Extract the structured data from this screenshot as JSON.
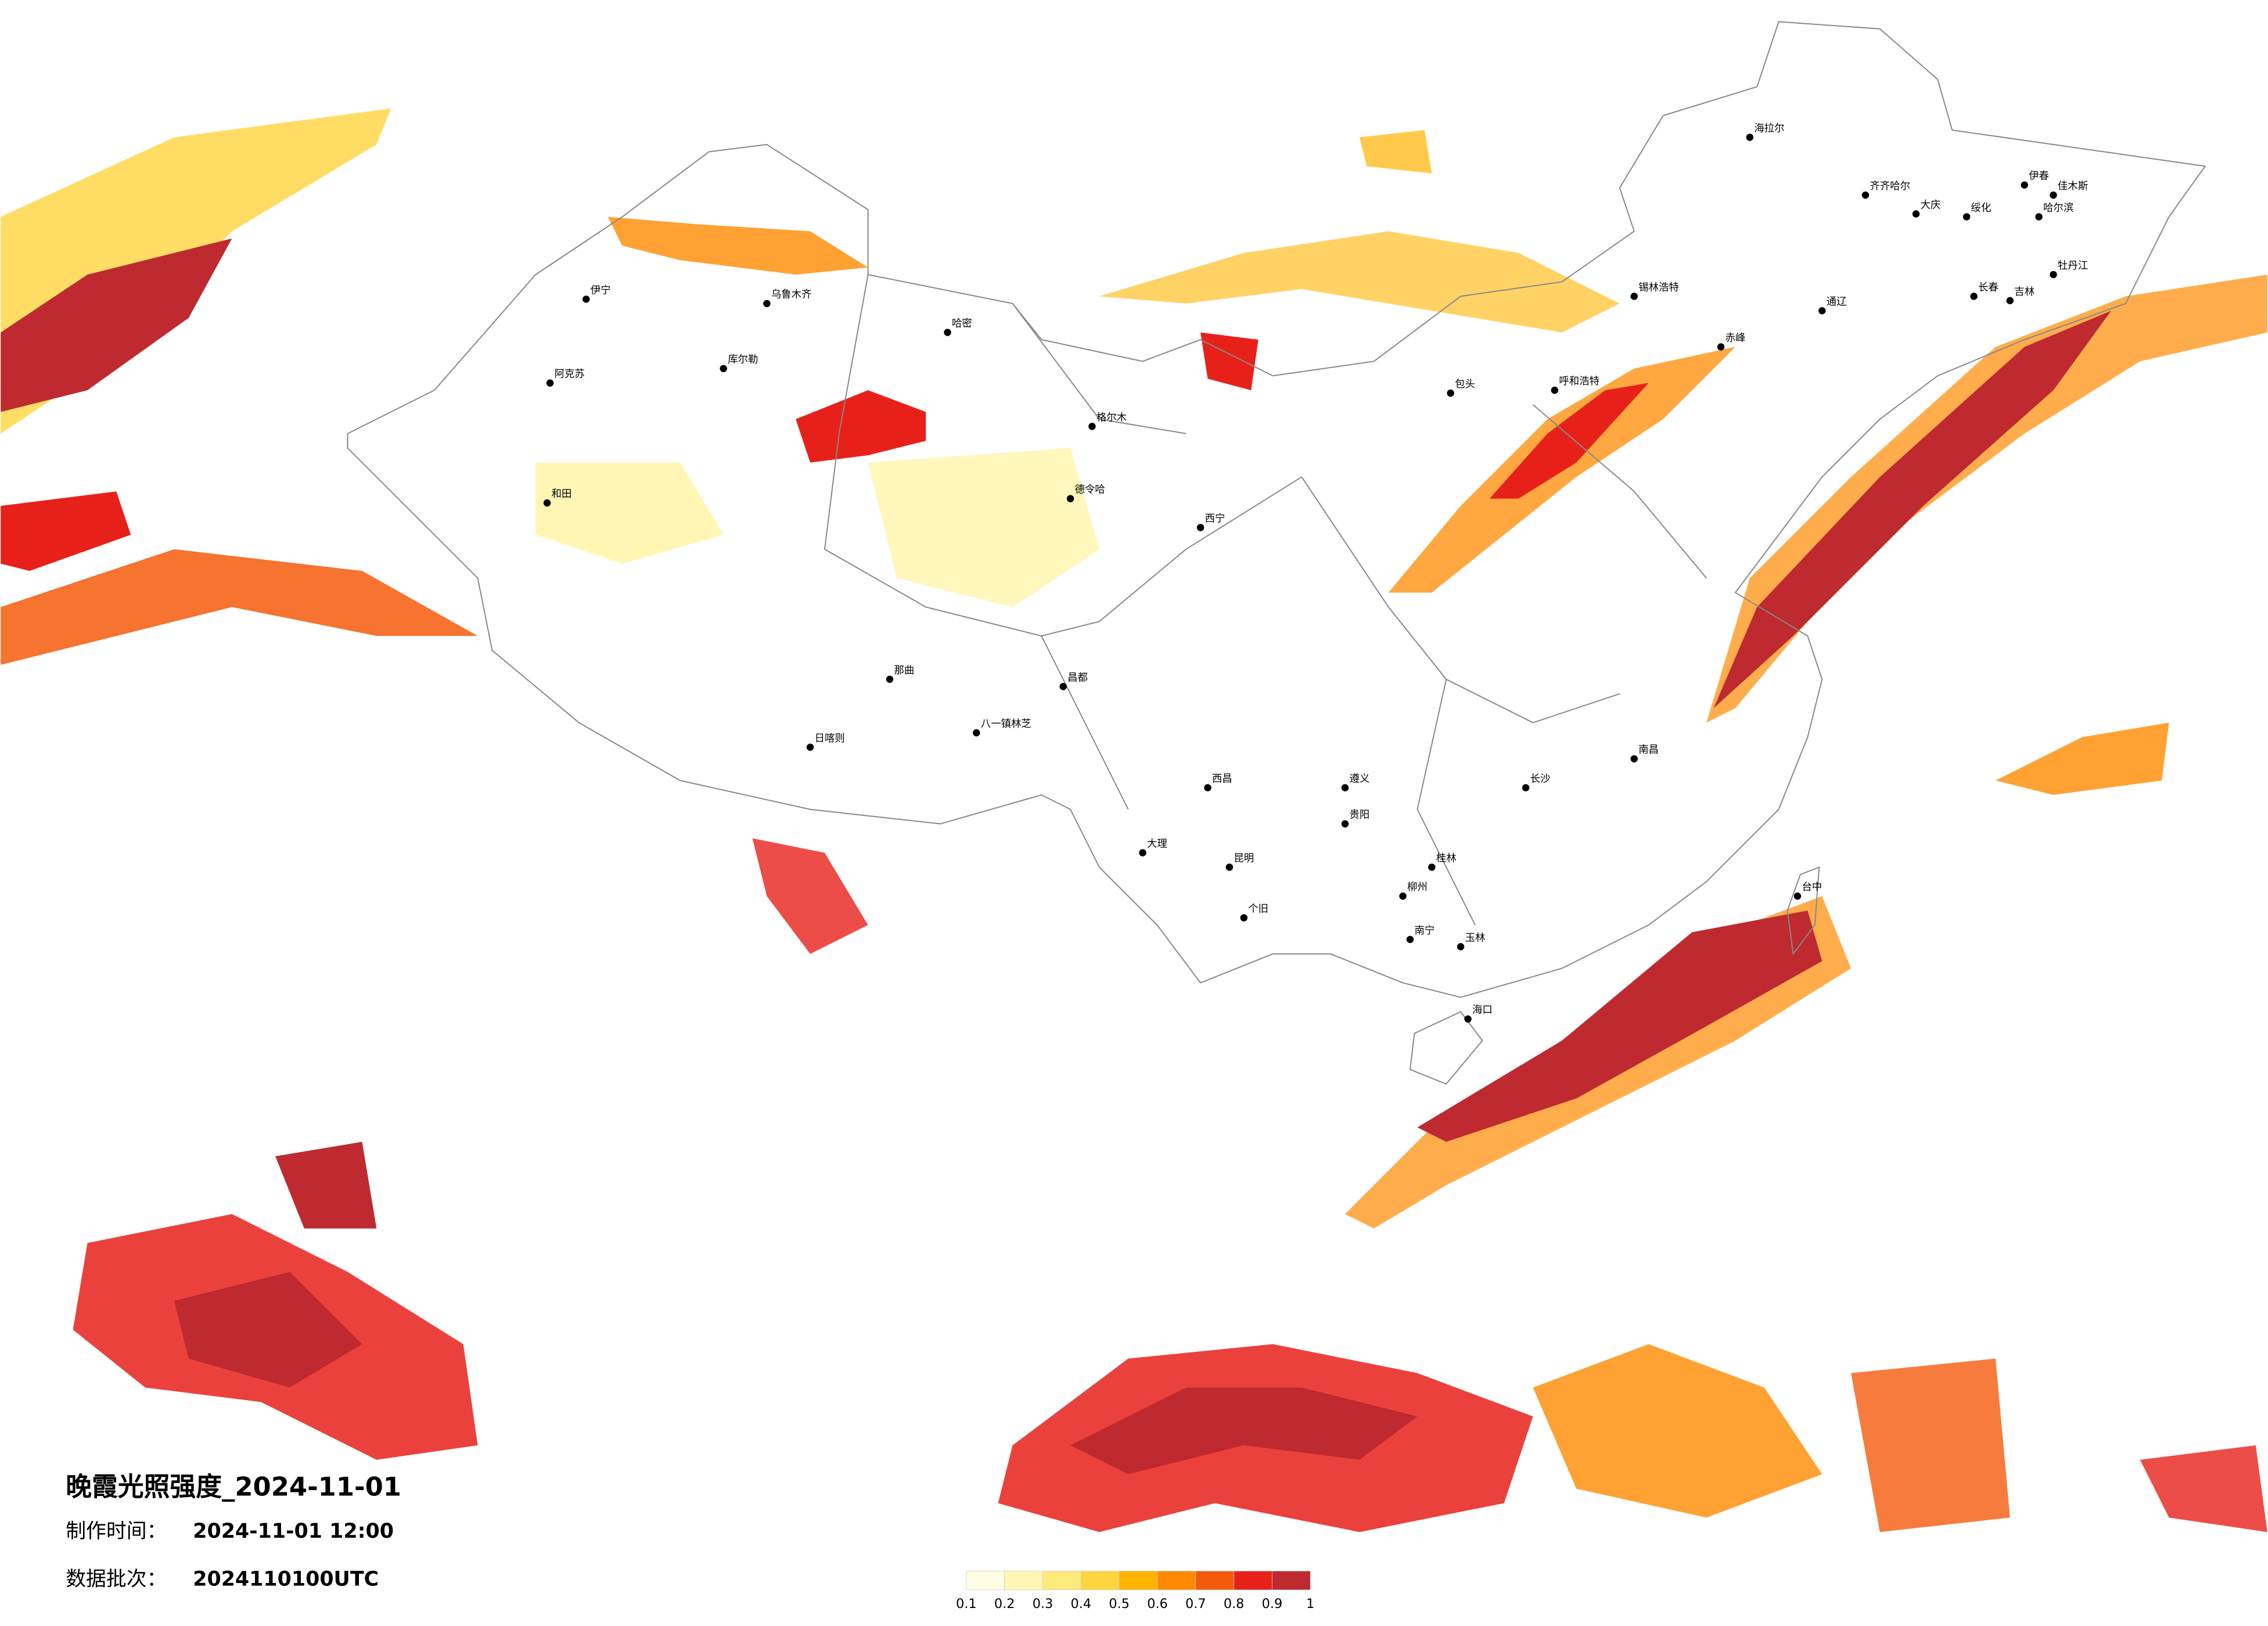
{
  "header": {
    "title": "晚霞光照强度_2024-11-01",
    "made_label": "制作时间：",
    "made_time": "2024-11-01 12:00",
    "batch_label": "数据批次：",
    "batch": "2024110100UTC"
  },
  "legend": {
    "ticks": [
      0.1,
      0.2,
      0.3,
      0.4,
      0.5,
      0.6,
      0.7,
      0.8,
      0.9,
      1
    ],
    "colors": [
      "#fffde3",
      "#fff6b4",
      "#ffea7c",
      "#ffd53f",
      "#ffb400",
      "#ff8a00",
      "#f45a0c",
      "#e8201a",
      "#be2a30"
    ]
  },
  "cities": [
    "伊宁",
    "阿克苏",
    "库尔勒",
    "和田",
    "乌鲁木齐",
    "哈密",
    "格尔木",
    "德令哈",
    "西宁",
    "日喀则",
    "那曲",
    "昌都",
    "八一镇林芝",
    "海拉尔",
    "齐齐哈尔",
    "大庆",
    "哈尔滨",
    "绥化",
    "伊春",
    "佳木斯",
    "牡丹江",
    "长春",
    "吉林",
    "通辽",
    "赤峰",
    "锡林浩特",
    "呼和浩特",
    "包头",
    "大理",
    "昆明",
    "个旧",
    "西昌",
    "贵阳",
    "遵义",
    "柳州",
    "桂林",
    "南宁",
    "玉林",
    "长沙",
    "南昌",
    "海口",
    "台中"
  ]
}
